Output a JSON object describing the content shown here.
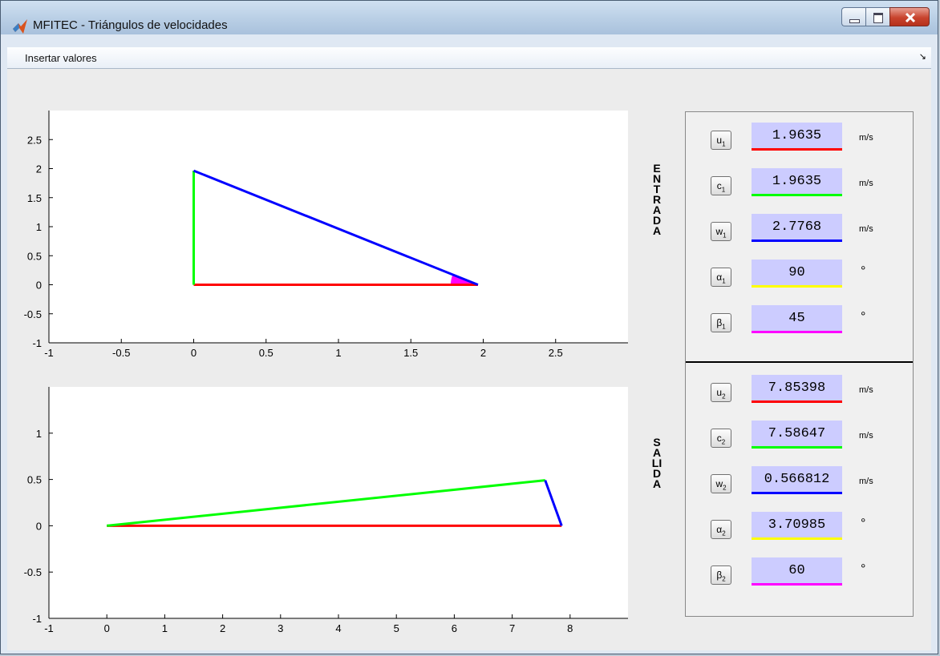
{
  "window": {
    "title": "MFITEC - Triángulos de velocidades"
  },
  "menu": {
    "insert_label": "Insertar valores",
    "arrow": "↘"
  },
  "labels": {
    "entrada": "ENTRADA",
    "salida": "SALIDA"
  },
  "colors": {
    "red": "#ff0000",
    "green": "#00ff00",
    "blue": "#0000ff",
    "yellow": "#ffff00",
    "magenta": "#ff00ff",
    "fill": "#ccccff"
  },
  "entrada_params": [
    {
      "symbol": "u",
      "sub": "1",
      "value": "1.9635",
      "unit": "m/s",
      "color": "#ff0000"
    },
    {
      "symbol": "c",
      "sub": "1",
      "value": "1.9635",
      "unit": "m/s",
      "color": "#00ff00"
    },
    {
      "symbol": "w",
      "sub": "1",
      "value": "2.7768",
      "unit": "m/s",
      "color": "#0000ff"
    },
    {
      "symbol": "α",
      "sub": "1",
      "value": "90",
      "unit": "°",
      "color": "#ffff00"
    },
    {
      "symbol": "β",
      "sub": "1",
      "value": "45",
      "unit": "°",
      "color": "#ff00ff"
    }
  ],
  "salida_params": [
    {
      "symbol": "u",
      "sub": "2",
      "value": "7.85398",
      "unit": "m/s",
      "color": "#ff0000"
    },
    {
      "symbol": "c",
      "sub": "2",
      "value": "7.58647",
      "unit": "m/s",
      "color": "#00ff00"
    },
    {
      "symbol": "w",
      "sub": "2",
      "value": "0.566812",
      "unit": "m/s",
      "color": "#0000ff"
    },
    {
      "symbol": "α",
      "sub": "2",
      "value": "3.70985",
      "unit": "°",
      "color": "#ffff00"
    },
    {
      "symbol": "β",
      "sub": "2",
      "value": "60",
      "unit": "°",
      "color": "#ff00ff"
    }
  ],
  "chart_data": [
    {
      "type": "line",
      "xlim": [
        -1,
        3
      ],
      "ylim": [
        -1,
        3
      ],
      "xticks": [
        "-1",
        "-0.5",
        "0",
        "0.5",
        "1",
        "1.5",
        "2",
        "2.5"
      ],
      "yticks": [
        "-1",
        "-0.5",
        "0",
        "0.5",
        "1",
        "1.5",
        "2",
        "2.5"
      ],
      "grid": false,
      "series": [
        {
          "color": "#ff0000",
          "x": [
            0,
            1.9635
          ],
          "y": [
            0,
            0
          ]
        },
        {
          "color": "#00ff00",
          "x": [
            0,
            0
          ],
          "y": [
            0,
            1.9635
          ]
        },
        {
          "color": "#0000ff",
          "x": [
            0,
            1.9635
          ],
          "y": [
            1.9635,
            0
          ]
        }
      ],
      "angle_marker": {
        "color": "#ff00ff",
        "at": [
          1.9635,
          0
        ]
      }
    },
    {
      "type": "line",
      "xlim": [
        -1,
        9
      ],
      "ylim": [
        -1,
        1.5
      ],
      "xticks": [
        "-1",
        "0",
        "1",
        "2",
        "3",
        "4",
        "5",
        "6",
        "7",
        "8"
      ],
      "yticks": [
        "-1",
        "-0.5",
        "0",
        "0.5",
        "1"
      ],
      "grid": false,
      "series": [
        {
          "color": "#ff0000",
          "x": [
            0,
            7.85398
          ],
          "y": [
            0,
            0
          ]
        },
        {
          "color": "#00ff00",
          "x": [
            0,
            7.57
          ],
          "y": [
            0,
            0.491
          ]
        },
        {
          "color": "#0000ff",
          "x": [
            7.57,
            7.85398
          ],
          "y": [
            0.491,
            0
          ]
        }
      ]
    }
  ]
}
